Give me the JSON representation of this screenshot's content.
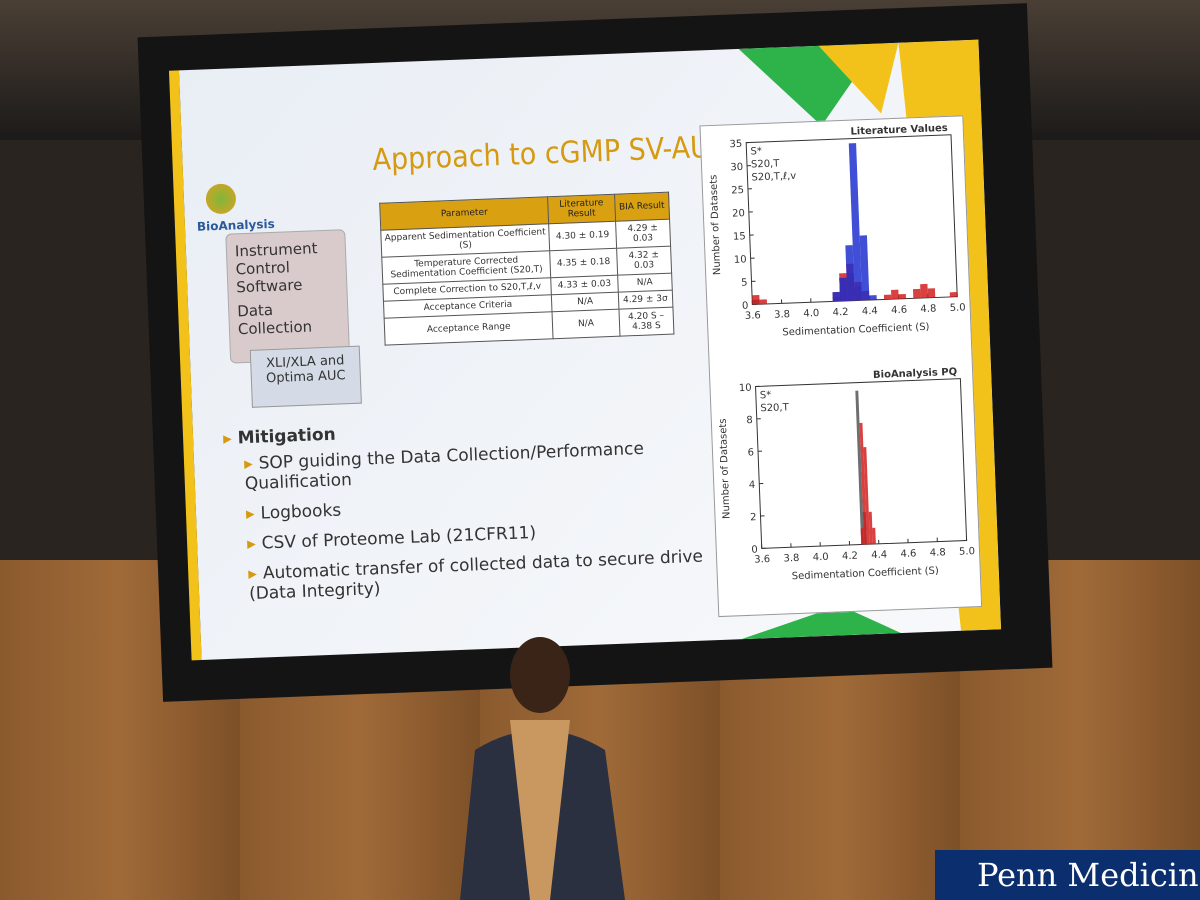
{
  "slide": {
    "title": "Approach to cGMP SV-AUC",
    "logo": "BioAnalysis",
    "sidebar": {
      "items": [
        "Instrument Control Software",
        "Data Collection"
      ],
      "box": "XLI/XLA and Optima AUC"
    },
    "table": {
      "header": [
        "Parameter",
        "Literature Result",
        "BIA Result"
      ],
      "rows": [
        [
          "Apparent Sedimentation Coefficient (S)",
          "4.30 ± 0.19",
          "4.29 ± 0.03"
        ],
        [
          "Temperature Corrected Sedimentation Coefficient (S20,T)",
          "4.35 ± 0.18",
          "4.32 ± 0.03"
        ],
        [
          "Complete Correction to S20,T,ℓ,v",
          "4.33 ± 0.03",
          "N/A"
        ],
        [
          "Acceptance Criteria",
          "N/A",
          "4.29 ± 3σ"
        ],
        [
          "Acceptance Range",
          "N/A",
          "4.20 S – 4.38 S"
        ]
      ]
    },
    "bullets": {
      "heading": "Mitigation",
      "items": [
        "SOP guiding the Data Collection/Performance Qualification",
        "Logbooks",
        "CSV of Proteome Lab (21CFR11)",
        "Automatic transfer of collected data to secure drive (Data Integrity)"
      ]
    },
    "charts": [
      {
        "type": "histogram",
        "annotation": "Literature Values",
        "x_label": "Sedimentation Coefficient (S)",
        "y_label": "Number of Datasets",
        "bins": [
          3.6,
          3.65,
          3.7,
          3.75,
          3.8,
          3.85,
          3.9,
          3.95,
          4.0,
          4.05,
          4.1,
          4.15,
          4.2,
          4.25,
          4.3,
          4.35,
          4.4,
          4.45,
          4.5,
          4.55,
          4.6,
          4.65,
          4.7,
          4.75,
          4.8,
          4.85,
          4.9,
          4.95,
          5.0
        ],
        "xlim": [
          3.6,
          5.0
        ],
        "ylim": [
          0,
          35
        ],
        "xticks": [
          3.6,
          3.8,
          {
            "value": 4,
            "label": "4.0"
          },
          4.2,
          4.4,
          4.6,
          4.8,
          {
            "value": 5,
            "label": "5.0"
          }
        ],
        "yticks": [
          0,
          5,
          10,
          15,
          20,
          25,
          30,
          35
        ],
        "series": [
          {
            "name": "S*",
            "color": "#333333",
            "values": [
              1,
              0,
              0,
              0,
              0,
              0,
              0,
              0,
              0,
              0,
              0,
              1,
              5,
              6,
              3,
              0,
              0,
              0,
              0,
              0,
              0,
              0,
              0,
              0,
              0,
              0,
              0,
              0
            ]
          },
          {
            "name": "S20,T",
            "color": "#d22020",
            "values": [
              2,
              1,
              0,
              0,
              0,
              0,
              0,
              0,
              0,
              0,
              0,
              2,
              6,
              8,
              4,
              2,
              0,
              0,
              1,
              2,
              1,
              0,
              2,
              3,
              2,
              0,
              0,
              1
            ]
          },
          {
            "name": "S20,T,ℓ,v",
            "color": "#2030d0",
            "values": [
              0,
              0,
              0,
              0,
              0,
              0,
              0,
              0,
              0,
              0,
              0,
              2,
              5,
              12,
              34,
              14,
              1,
              0,
              0,
              0,
              0,
              0,
              0,
              0,
              0,
              0,
              0,
              0
            ]
          }
        ]
      },
      {
        "type": "histogram",
        "annotation": "BioAnalysis PQ",
        "x_label": "Sedimentation Coefficient (S)",
        "y_label": "Number of Datasets",
        "bins": [
          4.26,
          4.28,
          4.3,
          4.32,
          4.34,
          4.36,
          4.38,
          4.4
        ],
        "xlim": [
          3.6,
          5.0
        ],
        "ylim": [
          0,
          10
        ],
        "xticks": [
          3.6,
          3.8,
          {
            "value": 4,
            "label": "4.0"
          },
          4.2,
          4.4,
          4.6,
          4.8,
          {
            "value": 5,
            "label": "5.0"
          }
        ],
        "yticks": [
          0,
          2,
          4,
          6,
          8,
          10
        ],
        "series": [
          {
            "name": "S*",
            "color": "#555555",
            "values": [
              0,
              9.5,
              2,
              0,
              0,
              0,
              0
            ]
          },
          {
            "name": "S20,T",
            "color": "#d22020",
            "values": [
              0,
              1,
              7.5,
              6,
              2,
              1,
              0
            ]
          }
        ]
      }
    ]
  },
  "sign": "Penn Medicine"
}
